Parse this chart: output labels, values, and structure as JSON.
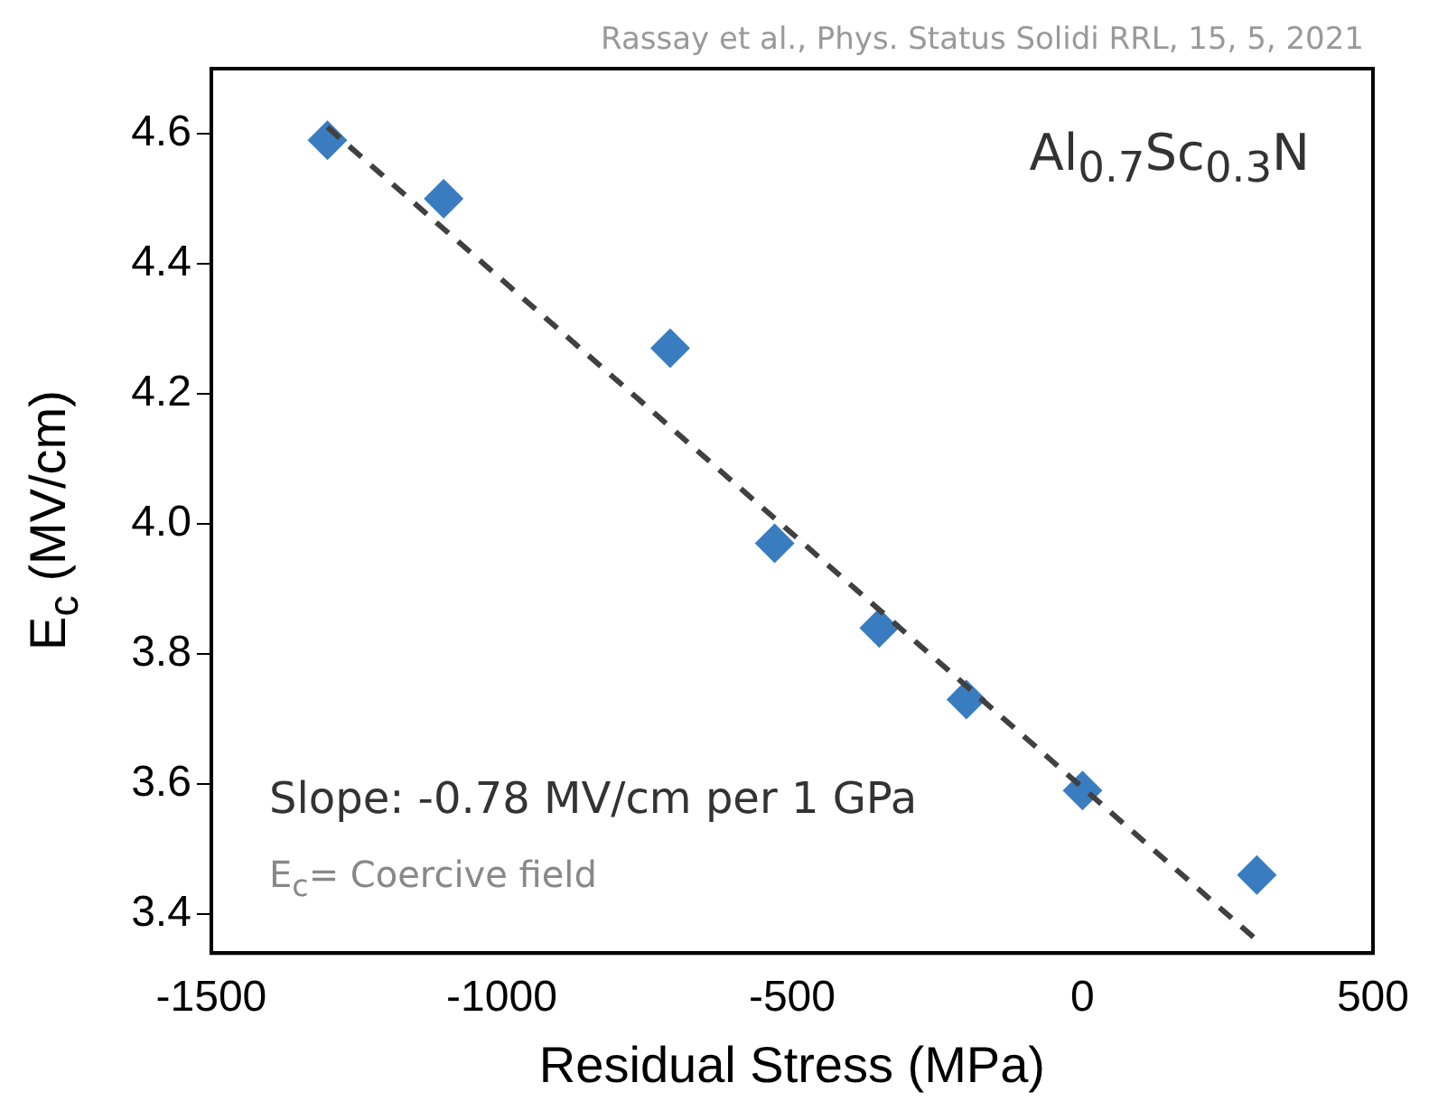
{
  "chart_data": {
    "type": "scatter",
    "xlabel": "Residual Stress (MPa)",
    "ylabel": "E$_{c}$ (MV/cm)",
    "annotations": [
      "Rassay et al., Phys. Status Solidi RRL, 15, 5, 2021",
      "Al$_{0.7}$Sc$_{0.3}$N",
      "Slope: -0.78 MV/cm per 1 GPa",
      "E$_{c}$= Coercive field"
    ],
    "series": [
      {
        "color": "#3a7cc0",
        "marker": "diamond",
        "x": [
          -1300,
          -1100,
          -710,
          -530,
          -350,
          -200,
          0,
          300
        ],
        "values": [
          4.59,
          4.5,
          4.27,
          3.97,
          3.84,
          3.73,
          3.59,
          3.46
        ]
      },
      {
        "type": "line",
        "color": "#404040",
        "line_style": "dashed",
        "marker": "none",
        "x": [
          -1300,
          300
        ],
        "values": [
          4.61,
          3.36
        ]
      }
    ],
    "xlim": [
      -1500,
      500
    ],
    "xticks": [
      -1500,
      -1000,
      -500,
      0,
      500
    ],
    "ylim": [
      3.34,
      4.7
    ],
    "yticks": [
      {
        "value": 3.4,
        "label": "3.4"
      },
      {
        "value": 3.6,
        "label": "3.6"
      },
      {
        "value": 3.8,
        "label": "3.8"
      },
      {
        "value": 4,
        "label": "4.0"
      },
      {
        "value": 4.2,
        "label": "4.2"
      },
      {
        "value": 4.4,
        "label": "4.4"
      },
      {
        "value": 4.6,
        "label": "4.6"
      }
    ],
    "grid": false,
    "legend": false
  }
}
